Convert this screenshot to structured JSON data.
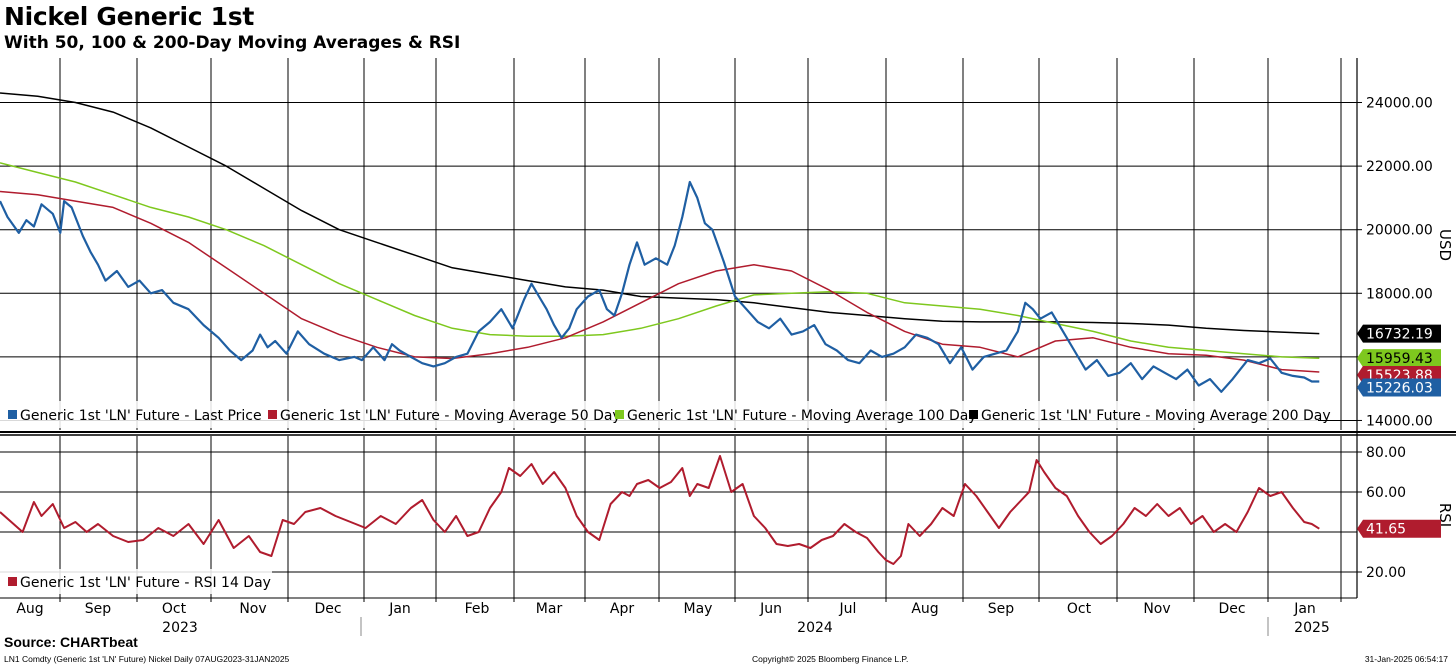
{
  "header": {
    "title": "Nickel Generic 1st",
    "subtitle": "With 50, 100 & 200-Day Moving Averages & RSI"
  },
  "footer": {
    "source": "Source: CHARTbeat",
    "ticker_info": "LN1 Comdty (Generic 1st 'LN' Future) Nickel  Daily 07AUG2023-31JAN2025",
    "copyright": "Copyright© 2025 Bloomberg Finance L.P.",
    "timestamp": "31-Jan-2025 06:54:17"
  },
  "colors": {
    "last_price": "#1f5fa3",
    "ma50": "#b01c2e",
    "ma100": "#7ec81e",
    "ma200": "#000000",
    "rsi": "#b01c2e",
    "grid": "#000000"
  },
  "chart_data": [
    {
      "type": "line",
      "title": "Nickel Generic 1st",
      "ylabel": "USD",
      "ylim": [
        13700,
        25400
      ],
      "yticks": [
        "14000.00",
        "16000.00",
        "18000.00",
        "20000.00",
        "22000.00",
        "24000.00"
      ],
      "x_months": [
        "Aug",
        "Sep",
        "Oct",
        "Nov",
        "Dec",
        "Jan",
        "Feb",
        "Mar",
        "Apr",
        "May",
        "Jun",
        "Jul",
        "Aug",
        "Sep",
        "Oct",
        "Nov",
        "Dec",
        "Jan"
      ],
      "x_years": [
        "2023",
        "2024",
        "2025"
      ],
      "x_domain": [
        0,
        18
      ],
      "last_values": {
        "ma200": "16732.19",
        "ma100": "15959.43",
        "ma50": "15523.88",
        "last_price": "15226.03"
      },
      "series": [
        {
          "key": "last_price",
          "name": "Generic 1st 'LN' Future - Last Price",
          "x": [
            0,
            0.1,
            0.25,
            0.35,
            0.45,
            0.55,
            0.7,
            0.8,
            0.85,
            0.95,
            1.1,
            1.2,
            1.3,
            1.4,
            1.55,
            1.7,
            1.85,
            2.0,
            2.15,
            2.3,
            2.5,
            2.7,
            2.9,
            3.05,
            3.2,
            3.35,
            3.45,
            3.55,
            3.65,
            3.8,
            3.95,
            4.1,
            4.3,
            4.5,
            4.7,
            4.8,
            4.95,
            5.1,
            5.2,
            5.3,
            5.45,
            5.6,
            5.75,
            5.9,
            6.05,
            6.2,
            6.35,
            6.5,
            6.65,
            6.8,
            6.95,
            7.05,
            7.15,
            7.25,
            7.35,
            7.45,
            7.55,
            7.65,
            7.8,
            7.95,
            8.05,
            8.15,
            8.25,
            8.35,
            8.45,
            8.55,
            8.7,
            8.85,
            8.95,
            9.05,
            9.15,
            9.25,
            9.35,
            9.45,
            9.6,
            9.75,
            9.9,
            10.05,
            10.2,
            10.35,
            10.5,
            10.65,
            10.8,
            10.95,
            11.1,
            11.25,
            11.4,
            11.55,
            11.7,
            11.85,
            12.0,
            12.15,
            12.3,
            12.45,
            12.6,
            12.75,
            12.9,
            13.05,
            13.2,
            13.35,
            13.5,
            13.6,
            13.7,
            13.8,
            13.95,
            14.1,
            14.25,
            14.4,
            14.55,
            14.7,
            14.85,
            15.0,
            15.15,
            15.3,
            15.45,
            15.6,
            15.75,
            15.9,
            16.05,
            16.2,
            16.35,
            16.45,
            16.55,
            16.7,
            16.85,
            17.0,
            17.15,
            17.3,
            17.4,
            17.5
          ],
          "y": [
            20900,
            20400,
            19900,
            20300,
            20100,
            20800,
            20500,
            19900,
            20900,
            20700,
            19800,
            19300,
            18900,
            18400,
            18700,
            18200,
            18400,
            18000,
            18100,
            17700,
            17500,
            17000,
            16600,
            16200,
            15900,
            16200,
            16700,
            16300,
            16500,
            16100,
            16800,
            16400,
            16100,
            15900,
            16000,
            15900,
            16300,
            15900,
            16400,
            16200,
            16000,
            15800,
            15700,
            15800,
            16000,
            16100,
            16800,
            17100,
            17500,
            16900,
            17800,
            18300,
            17900,
            17500,
            17000,
            16600,
            16900,
            17500,
            17900,
            18100,
            17500,
            17300,
            18000,
            18900,
            19600,
            18900,
            19100,
            18900,
            19500,
            20400,
            21500,
            21000,
            20200,
            20000,
            19000,
            17900,
            17500,
            17100,
            16900,
            17200,
            16700,
            16800,
            17000,
            16400,
            16200,
            15900,
            15800,
            16200,
            16000,
            16100,
            16300,
            16700,
            16600,
            16400,
            15800,
            16300,
            15600,
            16000,
            16100,
            16200,
            16800,
            17700,
            17500,
            17200,
            17400,
            16800,
            16200,
            15600,
            15900,
            15400,
            15500,
            15800,
            15300,
            15700,
            15500,
            15300,
            15600,
            15100,
            15300,
            14900,
            15300,
            15600,
            15900,
            15800,
            15950,
            15500,
            15400,
            15350,
            15226,
            15226
          ]
        },
        {
          "key": "ma50",
          "name": "Generic 1st 'LN' Future - Moving Average 50 Day",
          "x": [
            0,
            0.5,
            1,
            1.5,
            2,
            2.5,
            3,
            3.5,
            4,
            4.5,
            5,
            5.5,
            6,
            6.5,
            7,
            7.5,
            8,
            8.5,
            9,
            9.5,
            10,
            10.5,
            11,
            11.5,
            12,
            12.5,
            13,
            13.5,
            14,
            14.5,
            15,
            15.5,
            16,
            16.5,
            17,
            17.5
          ],
          "y": [
            21200,
            21100,
            20900,
            20700,
            20200,
            19600,
            18800,
            18000,
            17200,
            16700,
            16300,
            16000,
            15950,
            16100,
            16300,
            16600,
            17100,
            17700,
            18300,
            18700,
            18900,
            18700,
            18100,
            17400,
            16800,
            16400,
            16300,
            16000,
            16500,
            16600,
            16300,
            16100,
            16050,
            15900,
            15600,
            15524
          ]
        },
        {
          "key": "ma100",
          "name": "Generic 1st 'LN' Future - Moving Average 100 Day",
          "x": [
            0,
            0.5,
            1,
            1.5,
            2,
            2.5,
            3,
            3.5,
            4,
            4.5,
            5,
            5.5,
            6,
            6.5,
            7,
            7.5,
            8,
            8.5,
            9,
            9.5,
            10,
            10.5,
            11,
            11.5,
            12,
            12.5,
            13,
            13.5,
            14,
            14.5,
            15,
            15.5,
            16,
            16.5,
            17,
            17.5
          ],
          "y": [
            22100,
            21800,
            21500,
            21100,
            20700,
            20400,
            20000,
            19500,
            18900,
            18300,
            17800,
            17300,
            16900,
            16700,
            16650,
            16650,
            16700,
            16900,
            17200,
            17600,
            17950,
            18000,
            18050,
            18000,
            17700,
            17600,
            17500,
            17300,
            17050,
            16800,
            16500,
            16300,
            16200,
            16100,
            16000,
            15959
          ]
        },
        {
          "key": "ma200",
          "name": "Generic 1st 'LN' Future - Moving Average 200 Day",
          "x": [
            0,
            0.5,
            1,
            1.5,
            2,
            2.5,
            3,
            3.5,
            4,
            4.5,
            5,
            5.5,
            6,
            6.5,
            7,
            7.5,
            8,
            8.5,
            9,
            9.5,
            10,
            10.5,
            11,
            11.5,
            12,
            12.5,
            13,
            13.5,
            14,
            14.5,
            15,
            15.5,
            16,
            16.5,
            17,
            17.5
          ],
          "y": [
            24300,
            24200,
            24000,
            23700,
            23200,
            22600,
            22000,
            21300,
            20600,
            20000,
            19600,
            19200,
            18800,
            18600,
            18400,
            18200,
            18100,
            17900,
            17850,
            17800,
            17700,
            17550,
            17400,
            17300,
            17200,
            17120,
            17100,
            17100,
            17100,
            17080,
            17050,
            17000,
            16900,
            16830,
            16780,
            16732
          ]
        }
      ]
    },
    {
      "type": "line",
      "title": "RSI",
      "ylabel": "RSI",
      "ylim": [
        7,
        88
      ],
      "yticks": [
        "20.00",
        "60.00",
        "80.00"
      ],
      "x_domain": [
        0,
        18
      ],
      "last_value": "41.65",
      "series": [
        {
          "key": "rsi",
          "name": "Generic 1st 'LN' Future - RSI 14 Day",
          "x": [
            0,
            0.15,
            0.3,
            0.45,
            0.55,
            0.7,
            0.85,
            1.0,
            1.15,
            1.3,
            1.5,
            1.7,
            1.9,
            2.1,
            2.3,
            2.5,
            2.7,
            2.9,
            3.1,
            3.3,
            3.45,
            3.6,
            3.75,
            3.9,
            4.05,
            4.25,
            4.45,
            4.65,
            4.85,
            5.05,
            5.25,
            5.45,
            5.6,
            5.75,
            5.9,
            6.05,
            6.2,
            6.35,
            6.5,
            6.65,
            6.75,
            6.9,
            7.05,
            7.2,
            7.35,
            7.5,
            7.65,
            7.8,
            7.95,
            8.1,
            8.25,
            8.35,
            8.45,
            8.6,
            8.75,
            8.9,
            9.05,
            9.15,
            9.25,
            9.4,
            9.55,
            9.7,
            9.85,
            10.0,
            10.15,
            10.3,
            10.45,
            10.6,
            10.75,
            10.9,
            11.05,
            11.2,
            11.35,
            11.5,
            11.65,
            11.75,
            11.85,
            11.95,
            12.05,
            12.2,
            12.35,
            12.5,
            12.65,
            12.8,
            12.95,
            13.1,
            13.25,
            13.4,
            13.55,
            13.65,
            13.75,
            13.85,
            14.0,
            14.15,
            14.3,
            14.45,
            14.6,
            14.75,
            14.9,
            15.05,
            15.2,
            15.35,
            15.5,
            15.65,
            15.8,
            15.95,
            16.1,
            16.25,
            16.4,
            16.55,
            16.7,
            16.85,
            17.0,
            17.15,
            17.3,
            17.4,
            17.5
          ],
          "y": [
            50,
            45,
            40,
            55,
            48,
            54,
            42,
            45,
            40,
            44,
            38,
            35,
            36,
            42,
            38,
            44,
            34,
            46,
            32,
            38,
            30,
            28,
            46,
            44,
            50,
            52,
            48,
            45,
            42,
            48,
            44,
            52,
            56,
            46,
            40,
            48,
            38,
            40,
            52,
            60,
            72,
            68,
            74,
            64,
            70,
            62,
            48,
            40,
            36,
            54,
            60,
            58,
            64,
            66,
            62,
            65,
            72,
            58,
            64,
            62,
            78,
            60,
            64,
            48,
            42,
            34,
            33,
            34,
            32,
            36,
            38,
            44,
            40,
            37,
            30,
            26,
            24,
            28,
            44,
            38,
            44,
            52,
            48,
            64,
            58,
            50,
            42,
            50,
            56,
            60,
            76,
            70,
            62,
            58,
            48,
            40,
            34,
            38,
            44,
            52,
            48,
            54,
            48,
            52,
            44,
            48,
            40,
            44,
            40,
            50,
            62,
            58,
            60,
            52,
            45,
            44,
            41.65
          ]
        }
      ]
    }
  ]
}
